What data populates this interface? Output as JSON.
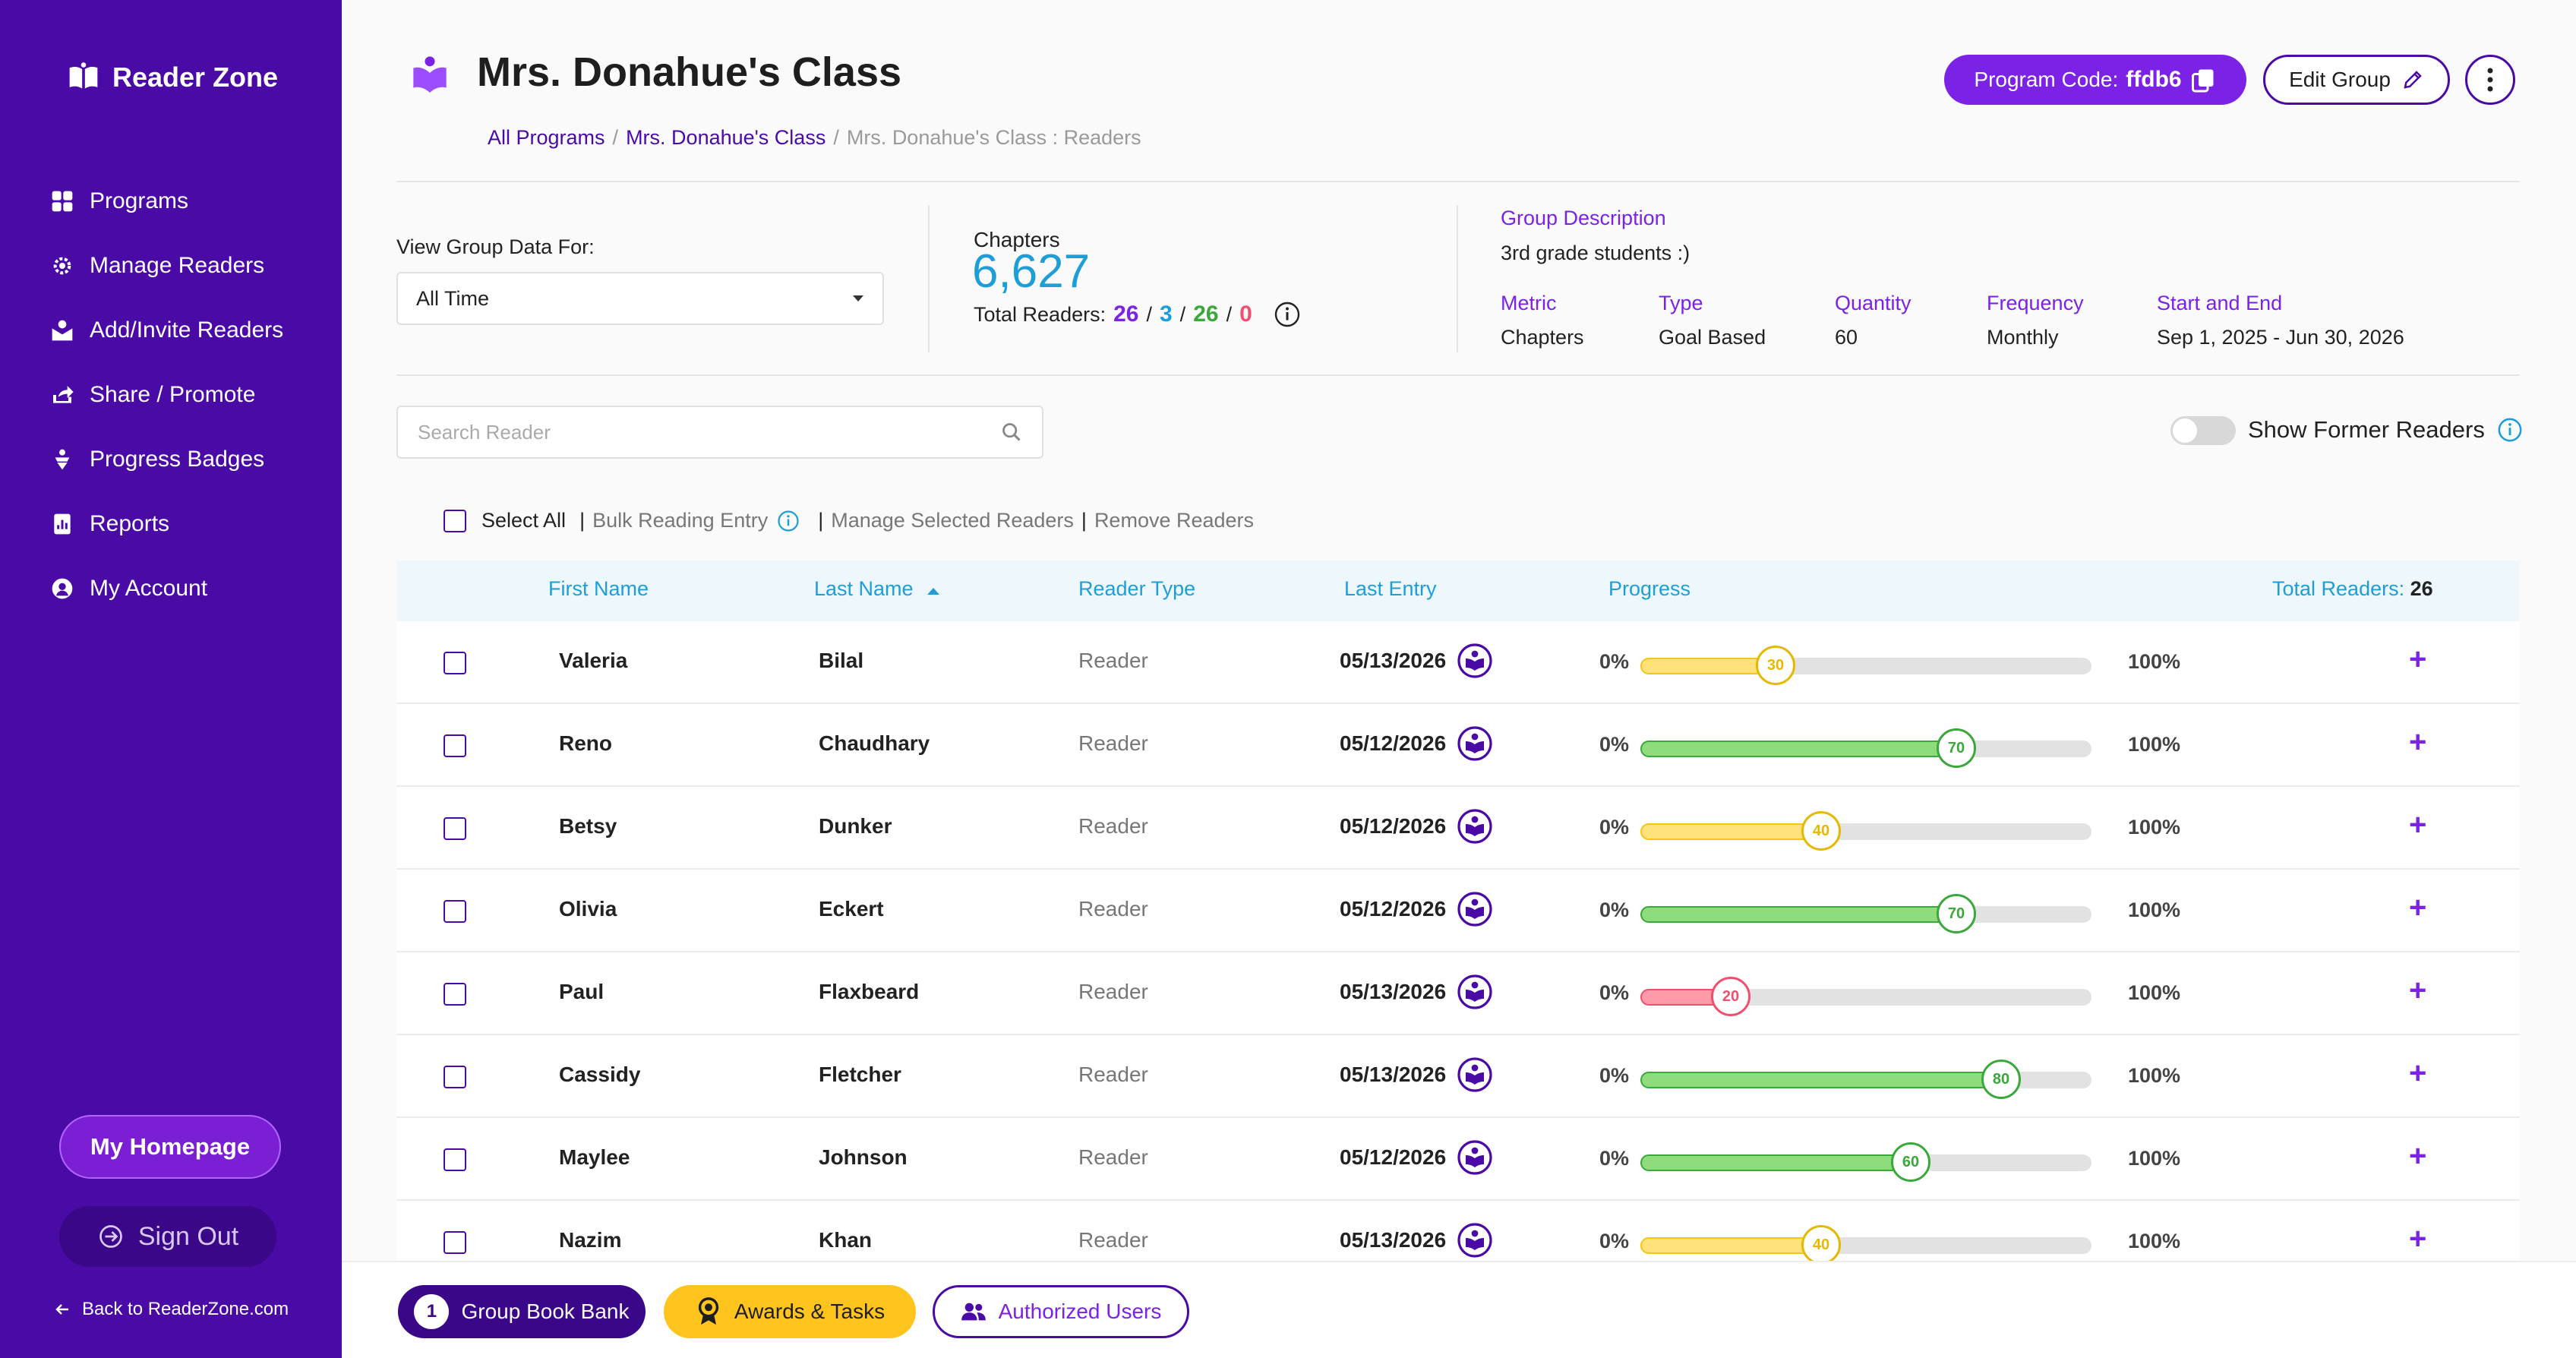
{
  "sidebar": {
    "brand": "Reader Zone",
    "items": [
      {
        "label": "Programs",
        "icon": "grid-icon"
      },
      {
        "label": "Manage Readers",
        "icon": "gear-icon"
      },
      {
        "label": "Add/Invite Readers",
        "icon": "invite-icon"
      },
      {
        "label": "Share / Promote",
        "icon": "share-icon"
      },
      {
        "label": "Progress Badges",
        "icon": "badge-icon"
      },
      {
        "label": "Reports",
        "icon": "reports-icon"
      },
      {
        "label": "My Account",
        "icon": "account-icon"
      }
    ],
    "home_label": "My Homepage",
    "signout_label": "Sign Out",
    "back_label": "Back to ReaderZone.com"
  },
  "header": {
    "title": "Mrs. Donahue's Class",
    "breadcrumb": [
      "All Programs",
      "Mrs. Donahue's Class",
      "Mrs. Donahue's Class : Readers"
    ],
    "program_code_label": "Program Code:",
    "program_code": "ffdb6",
    "edit_label": "Edit Group"
  },
  "stats": {
    "view_label": "View Group Data For:",
    "view_value": "All Time",
    "chapters_label": "Chapters",
    "chapters_value": "6,627",
    "total_readers_label": "Total Readers:",
    "counts": [
      {
        "value": "26",
        "color": "#7b22e6"
      },
      {
        "value": "3",
        "color": "#1e9ed9"
      },
      {
        "value": "26",
        "color": "#3aa83a"
      },
      {
        "value": "0",
        "color": "#f0506e"
      }
    ],
    "separator": "/"
  },
  "group": {
    "desc_title": "Group Description",
    "desc": "3rd grade students :)",
    "meta": [
      {
        "k": "Metric",
        "v": "Chapters"
      },
      {
        "k": "Type",
        "v": "Goal Based"
      },
      {
        "k": "Quantity",
        "v": "60"
      },
      {
        "k": "Frequency",
        "v": "Monthly"
      },
      {
        "k": "Start and End",
        "v": "Sep 1, 2025 - Jun 30, 2026"
      }
    ]
  },
  "search": {
    "placeholder": "Search Reader"
  },
  "former_label": "Show Former Readers",
  "actions": {
    "select_all": "Select All",
    "bulk": "Bulk Reading Entry",
    "manage": "Manage Selected Readers",
    "remove": "Remove Readers",
    "pipe": "|"
  },
  "table": {
    "headers": [
      "First Name",
      "Last Name",
      "Reader Type",
      "Last Entry",
      "Progress"
    ],
    "total_label": "Total Readers:",
    "total_value": "26",
    "min_label": "0%",
    "max_label": "100%",
    "rows": [
      {
        "first": "Valeria",
        "last": "Bilal",
        "type": "Reader",
        "entry": "05/13/2026",
        "progress": 30,
        "color": "yellow"
      },
      {
        "first": "Reno",
        "last": "Chaudhary",
        "type": "Reader",
        "entry": "05/12/2026",
        "progress": 70,
        "color": "green"
      },
      {
        "first": "Betsy",
        "last": "Dunker",
        "type": "Reader",
        "entry": "05/12/2026",
        "progress": 40,
        "color": "yellow"
      },
      {
        "first": "Olivia",
        "last": "Eckert",
        "type": "Reader",
        "entry": "05/12/2026",
        "progress": 70,
        "color": "green"
      },
      {
        "first": "Paul",
        "last": "Flaxbeard",
        "type": "Reader",
        "entry": "05/13/2026",
        "progress": 20,
        "color": "red"
      },
      {
        "first": "Cassidy",
        "last": "Fletcher",
        "type": "Reader",
        "entry": "05/13/2026",
        "progress": 80,
        "color": "green"
      },
      {
        "first": "Maylee",
        "last": "Johnson",
        "type": "Reader",
        "entry": "05/12/2026",
        "progress": 60,
        "color": "green"
      },
      {
        "first": "Nazim",
        "last": "Khan",
        "type": "Reader",
        "entry": "05/13/2026",
        "progress": 40,
        "color": "yellow"
      }
    ]
  },
  "bottom": {
    "book_bank_count": "1",
    "book_bank": "Group Book Bank",
    "awards": "Awards & Tasks",
    "authorized": "Authorized Users"
  },
  "colors": {
    "sidebar": "#4a0aa6",
    "accent": "#7b22e6",
    "link": "#1e9ed9",
    "yellow": "#f5c518",
    "green": "#3aa83a",
    "red": "#f0506e"
  }
}
